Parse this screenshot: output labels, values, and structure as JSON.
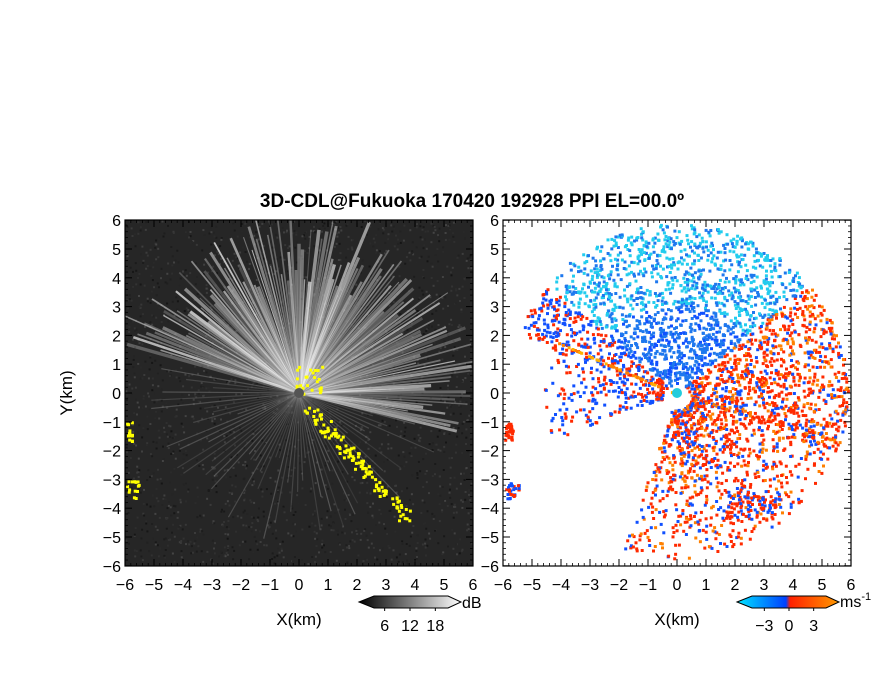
{
  "chart_data": {
    "type": "heatmap",
    "title": "3D-CDL@Fukuoka 170420 192928 PPI EL=00.0º",
    "panels": [
      {
        "name": "intensity",
        "xlabel": "X(km)",
        "ylabel": "Y(km)",
        "xlim": [
          -6,
          6
        ],
        "ylim": [
          -6,
          6
        ],
        "ticks": [
          "-6",
          "-5",
          "-4",
          "-3",
          "-2",
          "-1",
          "0",
          "1",
          "2",
          "3",
          "4",
          "5",
          "6"
        ],
        "ytick_labels": [
          "6",
          "5",
          "4",
          "3",
          "2",
          "1",
          "0",
          "-1",
          "-2",
          "-3",
          "-4",
          "-5",
          "-6"
        ],
        "colorbar": {
          "unit": "dB",
          "tick_labels": [
            "6",
            "12",
            "18"
          ],
          "ticks": [
            6,
            12,
            18
          ]
        },
        "colors": {
          "background": "#2b2b2b",
          "overlay": "#ffff00"
        }
      },
      {
        "name": "doppler_velocity",
        "xlabel": "X(km)",
        "xlim": [
          -6,
          6
        ],
        "ylim": [
          -6,
          6
        ],
        "ticks": [
          "-6",
          "-5",
          "-4",
          "-3",
          "-2",
          "-1",
          "0",
          "1",
          "2",
          "3",
          "4",
          "5",
          "6"
        ],
        "ytick_labels": [
          "6",
          "5",
          "4",
          "3",
          "2",
          "1",
          "0",
          "-1",
          "-2",
          "-3",
          "-4",
          "-5",
          "-6"
        ],
        "colorbar": {
          "unit": "ms",
          "unit_exponent": "-1",
          "tick_labels": [
            "-3",
            "0",
            "3"
          ],
          "ticks": [
            -3,
            0,
            3
          ]
        },
        "colors": {
          "approaching": [
            "#00e6ff",
            "#0050ff"
          ],
          "receding": [
            "#ff2000",
            "#ff9000"
          ]
        }
      }
    ]
  }
}
